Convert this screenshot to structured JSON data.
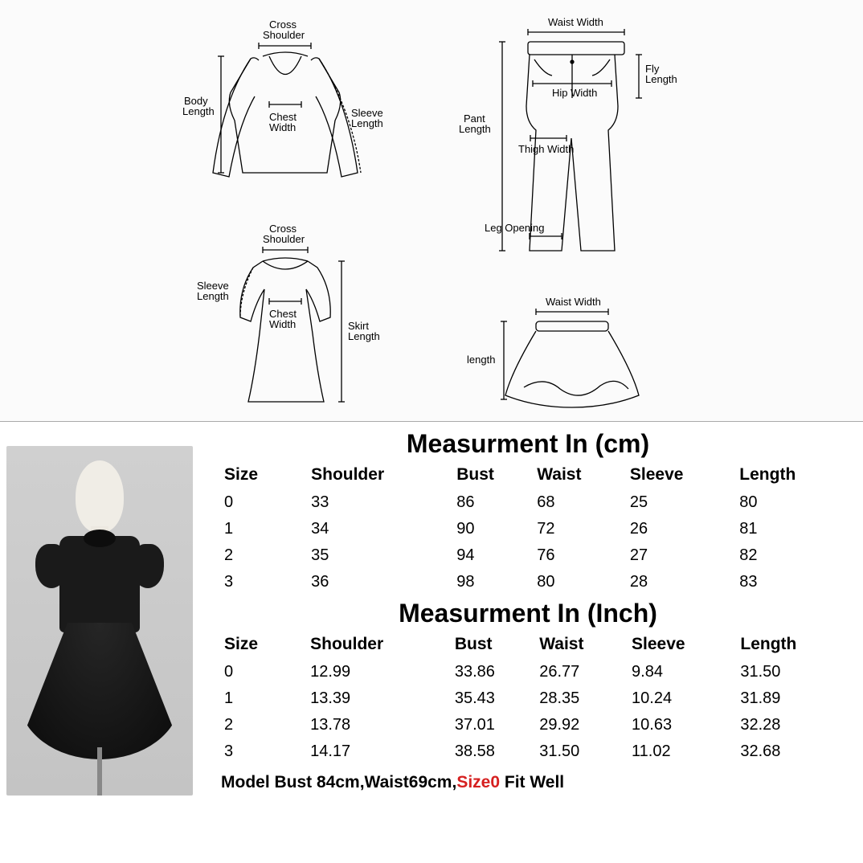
{
  "diagrams": {
    "top": {
      "cross_shoulder": "Cross\nShoulder",
      "body_length": "Body\nLength",
      "chest_width": "Chest\nWidth",
      "sleeve_length": "Sleeve\nLength"
    },
    "dress": {
      "cross_shoulder": "Cross\nShoulder",
      "sleeve_length": "Sleeve\nLength",
      "chest_width": "Chest\nWidth",
      "skirt_length": "Skirt\nLength"
    },
    "pant": {
      "waist_width": "Waist Width",
      "pant_length": "Pant\nLength",
      "hip_width": "Hip Width",
      "fly_length": "Fly\nLength",
      "thigh_width": "Thigh Width",
      "leg_opening": "Leg Opening"
    },
    "skirt": {
      "waist_width": "Waist Width",
      "length": "length"
    }
  },
  "table_cm": {
    "title": "Measurment In (cm)",
    "columns": [
      "Size",
      "Shoulder",
      "Bust",
      "Waist",
      "Sleeve",
      "Length"
    ],
    "rows": [
      [
        "0",
        "33",
        "86",
        "68",
        "25",
        "80"
      ],
      [
        "1",
        "34",
        "90",
        "72",
        "26",
        "81"
      ],
      [
        "2",
        "35",
        "94",
        "76",
        "27",
        "82"
      ],
      [
        "3",
        "36",
        "98",
        "80",
        "28",
        "83"
      ]
    ]
  },
  "table_inch": {
    "title": "Measurment In (Inch)",
    "columns": [
      "Size",
      "Shoulder",
      "Bust",
      "Waist",
      "Sleeve",
      "Length"
    ],
    "rows": [
      [
        "0",
        "12.99",
        "33.86",
        "26.77",
        "9.84",
        "31.50"
      ],
      [
        "1",
        "13.39",
        "35.43",
        "28.35",
        "10.24",
        "31.89"
      ],
      [
        "2",
        "13.78",
        "37.01",
        "29.92",
        "10.63",
        "32.28"
      ],
      [
        "3",
        "14.17",
        "38.58",
        "31.50",
        "11.02",
        "32.68"
      ]
    ]
  },
  "model_note": {
    "prefix": "Model Bust 84cm,Waist69cm,",
    "size": "Size0",
    "suffix": " Fit Well"
  },
  "styling": {
    "background": "#ffffff",
    "diagram_bg": "#fbfbfb",
    "text_color": "#000000",
    "accent_red": "#d62020",
    "title_fontsize": 32,
    "header_fontsize": 21,
    "cell_fontsize": 20,
    "stroke": "#000000",
    "stroke_width": 1.2
  }
}
